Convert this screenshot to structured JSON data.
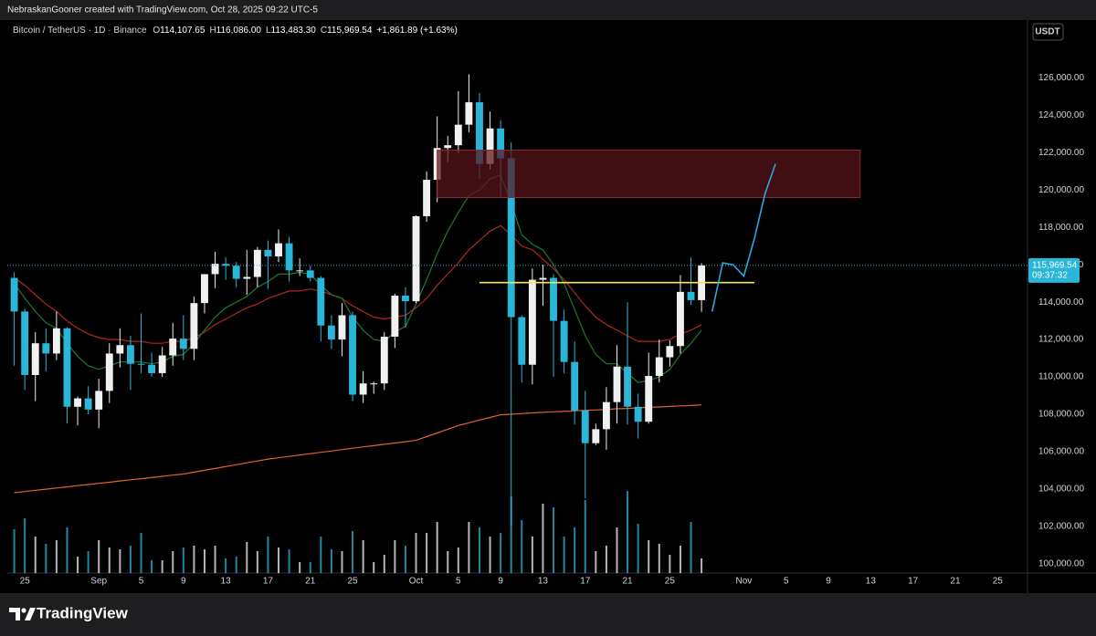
{
  "header": "NebraskanGooner created with TradingView.com, Oct 28, 2025 09:22 UTC-5",
  "brand": "TradingView",
  "chart_data": {
    "type": "candlestick",
    "legend": {
      "symbol": "Bitcoin / TetherUS · 1D · Binance",
      "ohlc": [
        {
          "key": "O",
          "value": "114,107.65"
        },
        {
          "key": "H",
          "value": "116,086.00"
        },
        {
          "key": "L",
          "value": "113,483.30"
        },
        {
          "key": "C",
          "value": "115,969.54"
        }
      ],
      "change": "+1,861.89 (+1.63%)"
    },
    "currency": "USDT",
    "last_price_label": "115,969.54",
    "countdown": "09:37:32",
    "x": [
      "2025-08-24",
      "2025-08-25",
      "2025-08-26",
      "2025-08-27",
      "2025-08-28",
      "2025-08-29",
      "2025-08-30",
      "2025-08-31",
      "2025-09-01",
      "2025-09-02",
      "2025-09-03",
      "2025-09-04",
      "2025-09-05",
      "2025-09-06",
      "2025-09-07",
      "2025-09-08",
      "2025-09-09",
      "2025-09-10",
      "2025-09-11",
      "2025-09-12",
      "2025-09-13",
      "2025-09-14",
      "2025-09-15",
      "2025-09-16",
      "2025-09-17",
      "2025-09-18",
      "2025-09-19",
      "2025-09-20",
      "2025-09-21",
      "2025-09-22",
      "2025-09-23",
      "2025-09-24",
      "2025-09-25",
      "2025-09-26",
      "2025-09-27",
      "2025-09-28",
      "2025-09-29",
      "2025-09-30",
      "2025-10-01",
      "2025-10-02",
      "2025-10-03",
      "2025-10-04",
      "2025-10-05",
      "2025-10-06",
      "2025-10-07",
      "2025-10-08",
      "2025-10-09",
      "2025-10-10",
      "2025-10-11",
      "2025-10-12",
      "2025-10-13",
      "2025-10-14",
      "2025-10-15",
      "2025-10-16",
      "2025-10-17",
      "2025-10-18",
      "2025-10-19",
      "2025-10-20",
      "2025-10-21",
      "2025-10-22",
      "2025-10-23",
      "2025-10-24",
      "2025-10-25",
      "2025-10-26",
      "2025-10-27",
      "2025-10-28"
    ],
    "open": [
      115300,
      113500,
      110100,
      111800,
      111250,
      112600,
      108400,
      108850,
      108250,
      109250,
      111250,
      111700,
      110700,
      110650,
      110200,
      111150,
      112050,
      111500,
      113950,
      115500,
      116050,
      115950,
      115250,
      115350,
      116800,
      116450,
      117150,
      115700,
      115700,
      115300,
      112750,
      112000,
      113300,
      109050,
      109650,
      109650,
      112150,
      114350,
      114050,
      118600,
      120550,
      122250,
      122400,
      123500,
      124700,
      121400,
      123300,
      121700,
      113200,
      110650,
      115200,
      115300,
      113000,
      110800,
      108200,
      106450,
      107200,
      108650,
      110550,
      108400,
      107600,
      110050,
      111050,
      111650,
      114550,
      114107.65
    ],
    "high": [
      115600,
      113650,
      112400,
      112600,
      113500,
      112650,
      108950,
      109500,
      109900,
      111800,
      112600,
      112200,
      113400,
      111300,
      111600,
      112900,
      113300,
      114300,
      115500,
      116700,
      116400,
      116150,
      116800,
      116950,
      117300,
      117900,
      117500,
      116350,
      115950,
      115400,
      113300,
      113950,
      113500,
      110300,
      109750,
      112400,
      114450,
      114800,
      118650,
      121000,
      123950,
      122900,
      125300,
      126200,
      125200,
      124200,
      123750,
      122550,
      113300,
      115800,
      116000,
      115500,
      113600,
      111900,
      109250,
      107500,
      109450,
      111700,
      114000,
      109100,
      111300,
      112000,
      111950,
      115450,
      116400,
      116086
    ],
    "low": [
      110600,
      109300,
      108700,
      110300,
      110900,
      107500,
      107400,
      108000,
      107250,
      108600,
      110500,
      109300,
      110200,
      110000,
      110000,
      110600,
      110900,
      110900,
      113400,
      114750,
      115200,
      114800,
      114400,
      114800,
      114700,
      116150,
      115100,
      115400,
      115100,
      111900,
      111500,
      111100,
      108700,
      108600,
      109100,
      109300,
      111550,
      112650,
      113950,
      118300,
      119350,
      121500,
      122000,
      123100,
      120600,
      121100,
      119650,
      102000,
      109700,
      109600,
      113800,
      110000,
      110200,
      107450,
      103500,
      106350,
      106100,
      107500,
      107450,
      106700,
      107500,
      109700,
      110550,
      111250,
      113850,
      113483.3
    ],
    "close": [
      113500,
      110100,
      111800,
      111250,
      112600,
      108400,
      108850,
      108250,
      109250,
      111250,
      111700,
      110700,
      110650,
      110200,
      111150,
      112050,
      111500,
      113950,
      115500,
      116050,
      115950,
      115250,
      115350,
      116800,
      116450,
      117150,
      115700,
      115700,
      115300,
      112750,
      112000,
      113300,
      109050,
      109650,
      109650,
      112150,
      114350,
      114050,
      118600,
      120550,
      122250,
      122400,
      123500,
      124700,
      121400,
      123300,
      121700,
      113200,
      110650,
      115200,
      115300,
      113000,
      110800,
      108200,
      106450,
      107200,
      108650,
      110550,
      108400,
      107600,
      110050,
      111050,
      111650,
      114550,
      114107.65,
      115969.54
    ],
    "volume": [
      24,
      30,
      20,
      16,
      18,
      25,
      9,
      12,
      18,
      14,
      13,
      15,
      22,
      7,
      7,
      12,
      14,
      15,
      13,
      15,
      8,
      9,
      17,
      12,
      20,
      14,
      13,
      6,
      6,
      20,
      13,
      12,
      23,
      18,
      6,
      10,
      18,
      15,
      22,
      22,
      28,
      12,
      14,
      28,
      25,
      20,
      22,
      42,
      29,
      20,
      38,
      36,
      20,
      25,
      40,
      12,
      15,
      25,
      45,
      27,
      18,
      16,
      10,
      15,
      28,
      8
    ],
    "up_color": "#f0f0f0",
    "down_color": "#29b6d8",
    "lines": [
      {
        "color": "#e0642a",
        "values": [
          103800,
          103860,
          103930,
          103990,
          104050,
          104110,
          104180,
          104240,
          104300,
          104360,
          104430,
          104490,
          104550,
          104610,
          104680,
          104740,
          104800,
          104900,
          105000,
          105100,
          105200,
          105300,
          105400,
          105500,
          105600,
          105670,
          105740,
          105820,
          105890,
          105960,
          106030,
          106110,
          106180,
          106250,
          106320,
          106390,
          106460,
          106530,
          106600,
          106800,
          107000,
          107200,
          107400,
          107540,
          107690,
          107830,
          107970,
          108000,
          108040,
          108070,
          108100,
          108130,
          108150,
          108180,
          108210,
          108230,
          108260,
          108290,
          108310,
          108340,
          108370,
          108390,
          108420,
          108450,
          108470,
          108500
        ]
      },
      {
        "color": "#b3261e",
        "values": [
          115300,
          114900,
          114400,
          113900,
          113500,
          113000,
          112600,
          112300,
          112100,
          112000,
          112000,
          111900,
          111900,
          111800,
          111800,
          111900,
          111900,
          112100,
          112400,
          112800,
          113100,
          113400,
          113700,
          113900,
          114200,
          114400,
          114600,
          114600,
          114700,
          114600,
          114400,
          114200,
          113800,
          113500,
          113200,
          113100,
          113200,
          113300,
          113700,
          114200,
          114900,
          115500,
          116100,
          116800,
          117300,
          117800,
          118100,
          117600,
          117000,
          116800,
          116300,
          115800,
          115200,
          114500,
          113800,
          113200,
          112800,
          112500,
          112200,
          111900,
          111900,
          111900,
          112000,
          112300,
          112500,
          112800
        ]
      },
      {
        "color": "#1e7a2e",
        "values": [
          115000,
          114200,
          113500,
          112900,
          112600,
          111800,
          111100,
          110600,
          110400,
          110600,
          110800,
          110800,
          110800,
          110700,
          110800,
          111100,
          111200,
          111800,
          112500,
          113200,
          113700,
          114000,
          114300,
          114800,
          115100,
          115500,
          115500,
          115600,
          115500,
          114900,
          114400,
          114200,
          113200,
          112500,
          112000,
          111900,
          112400,
          112700,
          113900,
          115200,
          116600,
          117800,
          118800,
          119700,
          120000,
          120600,
          120800,
          119300,
          117600,
          117100,
          116800,
          116000,
          115000,
          113600,
          112200,
          111200,
          110700,
          110700,
          110200,
          109700,
          109800,
          110000,
          110400,
          111200,
          111800,
          112500
        ]
      }
    ],
    "zone": {
      "x": [
        "2025-10-03",
        "2025-11-12"
      ],
      "y": [
        119600,
        122140
      ],
      "color": "#5a141c"
    },
    "level": {
      "x": [
        "2025-10-07",
        "2025-11-02"
      ],
      "value": 115050,
      "color": "#f5e94a"
    },
    "projection": {
      "x": [
        "2025-10-29",
        "2025-10-30",
        "2025-10-31",
        "2025-11-01",
        "2025-11-02",
        "2025-11-03",
        "2025-11-04"
      ],
      "values": [
        113500,
        116100,
        116000,
        115400,
        117400,
        119800,
        121400
      ],
      "color": "#29a8e0"
    },
    "xlim": [
      "2025-08-23",
      "2025-11-28"
    ],
    "xticks": [
      {
        "value": "2025-08-25",
        "label": "25"
      },
      {
        "value": "2025-09-01",
        "label": "Sep"
      },
      {
        "value": "2025-09-05",
        "label": "5"
      },
      {
        "value": "2025-09-09",
        "label": "9"
      },
      {
        "value": "2025-09-13",
        "label": "13"
      },
      {
        "value": "2025-09-17",
        "label": "17"
      },
      {
        "value": "2025-09-21",
        "label": "21"
      },
      {
        "value": "2025-09-25",
        "label": "25"
      },
      {
        "value": "2025-10-01",
        "label": "Oct"
      },
      {
        "value": "2025-10-05",
        "label": "5"
      },
      {
        "value": "2025-10-09",
        "label": "9"
      },
      {
        "value": "2025-10-13",
        "label": "13"
      },
      {
        "value": "2025-10-17",
        "label": "17"
      },
      {
        "value": "2025-10-21",
        "label": "21"
      },
      {
        "value": "2025-10-25",
        "label": "25"
      },
      {
        "value": "2025-11-01",
        "label": "Nov"
      },
      {
        "value": "2025-11-05",
        "label": "5"
      },
      {
        "value": "2025-11-09",
        "label": "9"
      },
      {
        "value": "2025-11-13",
        "label": "13"
      },
      {
        "value": "2025-11-17",
        "label": "17"
      },
      {
        "value": "2025-11-21",
        "label": "21"
      },
      {
        "value": "2025-11-25",
        "label": "25"
      }
    ],
    "ylim": [
      99500,
      129100
    ],
    "yticks": [
      {
        "value": 100000,
        "label": "100,000.00"
      },
      {
        "value": 102000,
        "label": "102,000.00"
      },
      {
        "value": 104000,
        "label": "104,000.00"
      },
      {
        "value": 106000,
        "label": "106,000.00"
      },
      {
        "value": 108000,
        "label": "108,000.00"
      },
      {
        "value": 110000,
        "label": "110,000.00"
      },
      {
        "value": 112000,
        "label": "112,000.00"
      },
      {
        "value": 114000,
        "label": "114,000.00"
      },
      {
        "value": 116000,
        "label": "116,000.00"
      },
      {
        "value": 118000,
        "label": "118,000.00"
      },
      {
        "value": 120000,
        "label": "120,000.00"
      },
      {
        "value": 122000,
        "label": "122,000.00"
      },
      {
        "value": 124000,
        "label": "124,000.00"
      },
      {
        "value": 126000,
        "label": "126,000.00"
      }
    ],
    "grid": false
  }
}
